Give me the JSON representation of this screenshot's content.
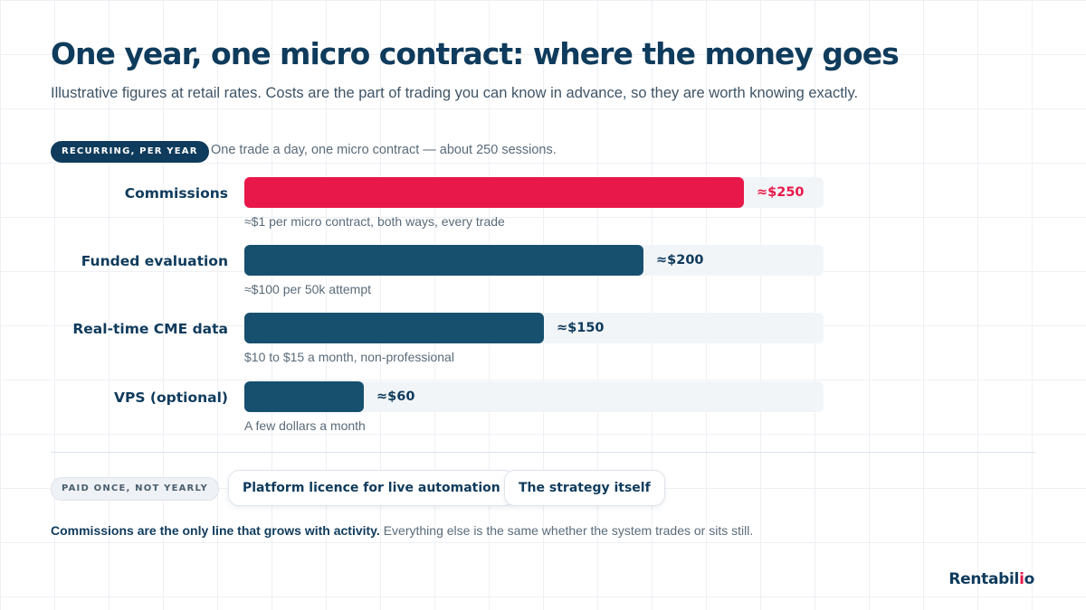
{
  "header": {
    "title": "One year, one micro contract: where the money goes",
    "subtitle": "Illustrative figures at retail rates. Costs are the part of trading you can know in advance, so they are worth knowing exactly."
  },
  "recurring": {
    "pill": "RECURRING, PER YEAR",
    "note": "One trade a day, one micro contract — about 250 sessions."
  },
  "colors": {
    "highlight": "#e8194a",
    "bar": "#17506f",
    "track": "#f2f5f8",
    "text_dark": "#0f3b5c"
  },
  "chart_data": {
    "type": "bar",
    "orientation": "horizontal",
    "xlim": [
      0,
      290
    ],
    "categories": [
      "Commissions",
      "Funded evaluation",
      "Real-time CME data",
      "VPS (optional)"
    ],
    "values": [
      250,
      200,
      150,
      60
    ],
    "value_labels": [
      "≈$250",
      "≈$200",
      "≈$150",
      "≈$60"
    ],
    "notes": [
      "≈$1 per micro contract, both ways, every trade",
      "≈$100 per 50k attempt",
      "$10 to $15 a month, non-professional",
      "A few dollars a month"
    ],
    "highlighted_index": 0
  },
  "paid_once": {
    "pill": "PAID ONCE, NOT YEARLY",
    "items": [
      "Platform licence for live automation",
      "The strategy itself"
    ]
  },
  "footnote": {
    "strong": "Commissions are the only line that grows with activity.",
    "rest": "Everything else is the same whether the system trades or sits still."
  },
  "brand": {
    "logo_main": "Rentabil",
    "logo_accent": "i",
    "logo_end": "o"
  }
}
